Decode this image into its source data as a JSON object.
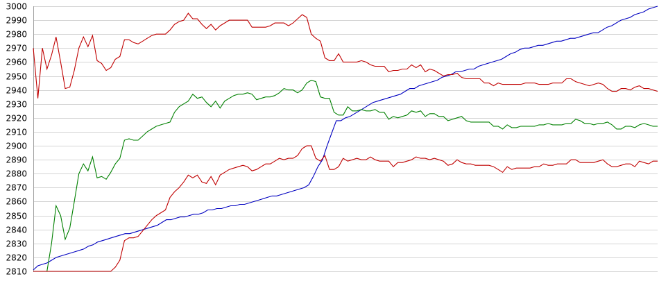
{
  "chart_data": {
    "type": "line",
    "title": "",
    "xlabel": "",
    "ylabel": "",
    "ylim": [
      2810,
      3000
    ],
    "ytick_step": 10,
    "yticks": [
      "3000",
      "2990",
      "2980",
      "2970",
      "2960",
      "2950",
      "2940",
      "2930",
      "2920",
      "2910",
      "2900",
      "2890",
      "2880",
      "2870",
      "2860",
      "2850",
      "2840",
      "2830",
      "2820",
      "2810"
    ],
    "grid": true,
    "legend": "none",
    "series": [
      {
        "color": "#0000c0",
        "values": [
          2811,
          2814,
          2815,
          2816,
          2818,
          2820,
          2821,
          2822,
          2823,
          2824,
          2825,
          2826,
          2828,
          2829,
          2831,
          2832,
          2833,
          2834,
          2835,
          2836,
          2837,
          2837,
          2838,
          2839,
          2840,
          2841,
          2842,
          2843,
          2845,
          2847,
          2847,
          2848,
          2849,
          2849,
          2850,
          2851,
          2851,
          2852,
          2854,
          2854,
          2855,
          2855,
          2856,
          2857,
          2857,
          2858,
          2858,
          2859,
          2860,
          2861,
          2862,
          2863,
          2864,
          2864,
          2865,
          2866,
          2867,
          2868,
          2869,
          2870,
          2872,
          2878,
          2885,
          2890,
          2900,
          2909,
          2918,
          2918,
          2920,
          2921,
          2923,
          2925,
          2927,
          2929,
          2931,
          2932,
          2933,
          2934,
          2935,
          2936,
          2937,
          2939,
          2941,
          2941,
          2943,
          2944,
          2945,
          2946,
          2947,
          2949,
          2950,
          2951,
          2953,
          2953,
          2954,
          2955,
          2955,
          2957,
          2958,
          2959,
          2960,
          2961,
          2962,
          2964,
          2966,
          2967,
          2969,
          2970,
          2970,
          2971,
          2972,
          2972,
          2973,
          2974,
          2975,
          2975,
          2976,
          2977,
          2977,
          2978,
          2979,
          2980,
          2981,
          2981,
          2983,
          2985,
          2986,
          2988,
          2990,
          2991,
          2992,
          2994,
          2995,
          2996,
          2998,
          2999,
          3000
        ]
      },
      {
        "color": "#c00000",
        "values": [
          2970,
          2934,
          2970,
          2955,
          2965,
          2978,
          2960,
          2941,
          2942,
          2954,
          2970,
          2978,
          2971,
          2979,
          2961,
          2959,
          2954,
          2956,
          2962,
          2964,
          2976,
          2976,
          2974,
          2973,
          2975,
          2977,
          2979,
          2980,
          2980,
          2980,
          2983,
          2987,
          2989,
          2990,
          2995,
          2991,
          2991,
          2987,
          2984,
          2987,
          2983,
          2986,
          2988,
          2990,
          2990,
          2990,
          2990,
          2990,
          2985,
          2985,
          2985,
          2985,
          2986,
          2988,
          2988,
          2988,
          2986,
          2988,
          2991,
          2994,
          2992,
          2980,
          2977,
          2975,
          2963,
          2961,
          2961,
          2966,
          2960,
          2960,
          2960,
          2960,
          2961,
          2960,
          2958,
          2957,
          2957,
          2957,
          2953,
          2954,
          2954,
          2955,
          2955,
          2958,
          2956,
          2958,
          2953,
          2955,
          2954,
          2952,
          2950,
          2951,
          2951,
          2952,
          2949,
          2948,
          2948,
          2948,
          2948,
          2945,
          2945,
          2943,
          2945,
          2944,
          2944,
          2944,
          2944,
          2944,
          2945,
          2945,
          2945,
          2944,
          2944,
          2944,
          2945,
          2945,
          2945,
          2948,
          2948,
          2946,
          2945,
          2944,
          2943,
          2944,
          2945,
          2944,
          2941,
          2939,
          2939,
          2941,
          2941,
          2940,
          2942,
          2943,
          2941,
          2941,
          2940,
          2939
        ]
      },
      {
        "color": "#008000",
        "values": [
          2810,
          2810,
          2810,
          2810,
          2830,
          2857,
          2850,
          2833,
          2841,
          2860,
          2880,
          2887,
          2882,
          2892,
          2877,
          2878,
          2876,
          2881,
          2887,
          2891,
          2904,
          2905,
          2904,
          2904,
          2907,
          2910,
          2912,
          2914,
          2915,
          2916,
          2917,
          2924,
          2928,
          2930,
          2932,
          2937,
          2934,
          2935,
          2931,
          2928,
          2932,
          2927,
          2932,
          2934,
          2936,
          2937,
          2937,
          2938,
          2937,
          2933,
          2934,
          2935,
          2935,
          2936,
          2938,
          2941,
          2940,
          2940,
          2938,
          2940,
          2945,
          2947,
          2946,
          2935,
          2934,
          2934,
          2924,
          2922,
          2922,
          2928,
          2925,
          2925,
          2926,
          2925,
          2925,
          2926,
          2924,
          2924,
          2919,
          2921,
          2920,
          2921,
          2922,
          2925,
          2924,
          2925,
          2921,
          2923,
          2923,
          2921,
          2921,
          2918,
          2919,
          2920,
          2921,
          2918,
          2917,
          2917,
          2917,
          2917,
          2917,
          2914,
          2914,
          2912,
          2915,
          2913,
          2913,
          2914,
          2914,
          2914,
          2914,
          2915,
          2915,
          2916,
          2915,
          2915,
          2915,
          2916,
          2916,
          2919,
          2918,
          2916,
          2916,
          2915,
          2916,
          2916,
          2917,
          2915,
          2912,
          2912,
          2914,
          2914,
          2913,
          2915,
          2916,
          2915,
          2914,
          2914
        ]
      },
      {
        "color": "#c00000",
        "values": [
          2810,
          2810,
          2810,
          2810,
          2810,
          2810,
          2810,
          2810,
          2810,
          2810,
          2810,
          2810,
          2810,
          2810,
          2810,
          2810,
          2810,
          2810,
          2813,
          2818,
          2832,
          2834,
          2834,
          2835,
          2839,
          2843,
          2847,
          2850,
          2852,
          2854,
          2863,
          2867,
          2870,
          2874,
          2879,
          2877,
          2879,
          2874,
          2873,
          2878,
          2872,
          2879,
          2881,
          2883,
          2884,
          2885,
          2886,
          2885,
          2882,
          2883,
          2885,
          2887,
          2887,
          2889,
          2891,
          2890,
          2891,
          2891,
          2893,
          2898,
          2900,
          2900,
          2891,
          2889,
          2893,
          2883,
          2883,
          2885,
          2891,
          2889,
          2890,
          2891,
          2890,
          2890,
          2892,
          2890,
          2889,
          2889,
          2889,
          2885,
          2888,
          2888,
          2889,
          2890,
          2892,
          2891,
          2891,
          2890,
          2891,
          2890,
          2889,
          2886,
          2887,
          2890,
          2888,
          2887,
          2887,
          2886,
          2886,
          2886,
          2886,
          2885,
          2883,
          2881,
          2885,
          2883,
          2884,
          2884,
          2884,
          2884,
          2885,
          2885,
          2887,
          2886,
          2886,
          2887,
          2887,
          2887,
          2890,
          2890,
          2888,
          2888,
          2888,
          2888,
          2889,
          2890,
          2887,
          2885,
          2885,
          2886,
          2887,
          2887,
          2885,
          2889,
          2888,
          2887,
          2889,
          2889
        ]
      }
    ]
  }
}
